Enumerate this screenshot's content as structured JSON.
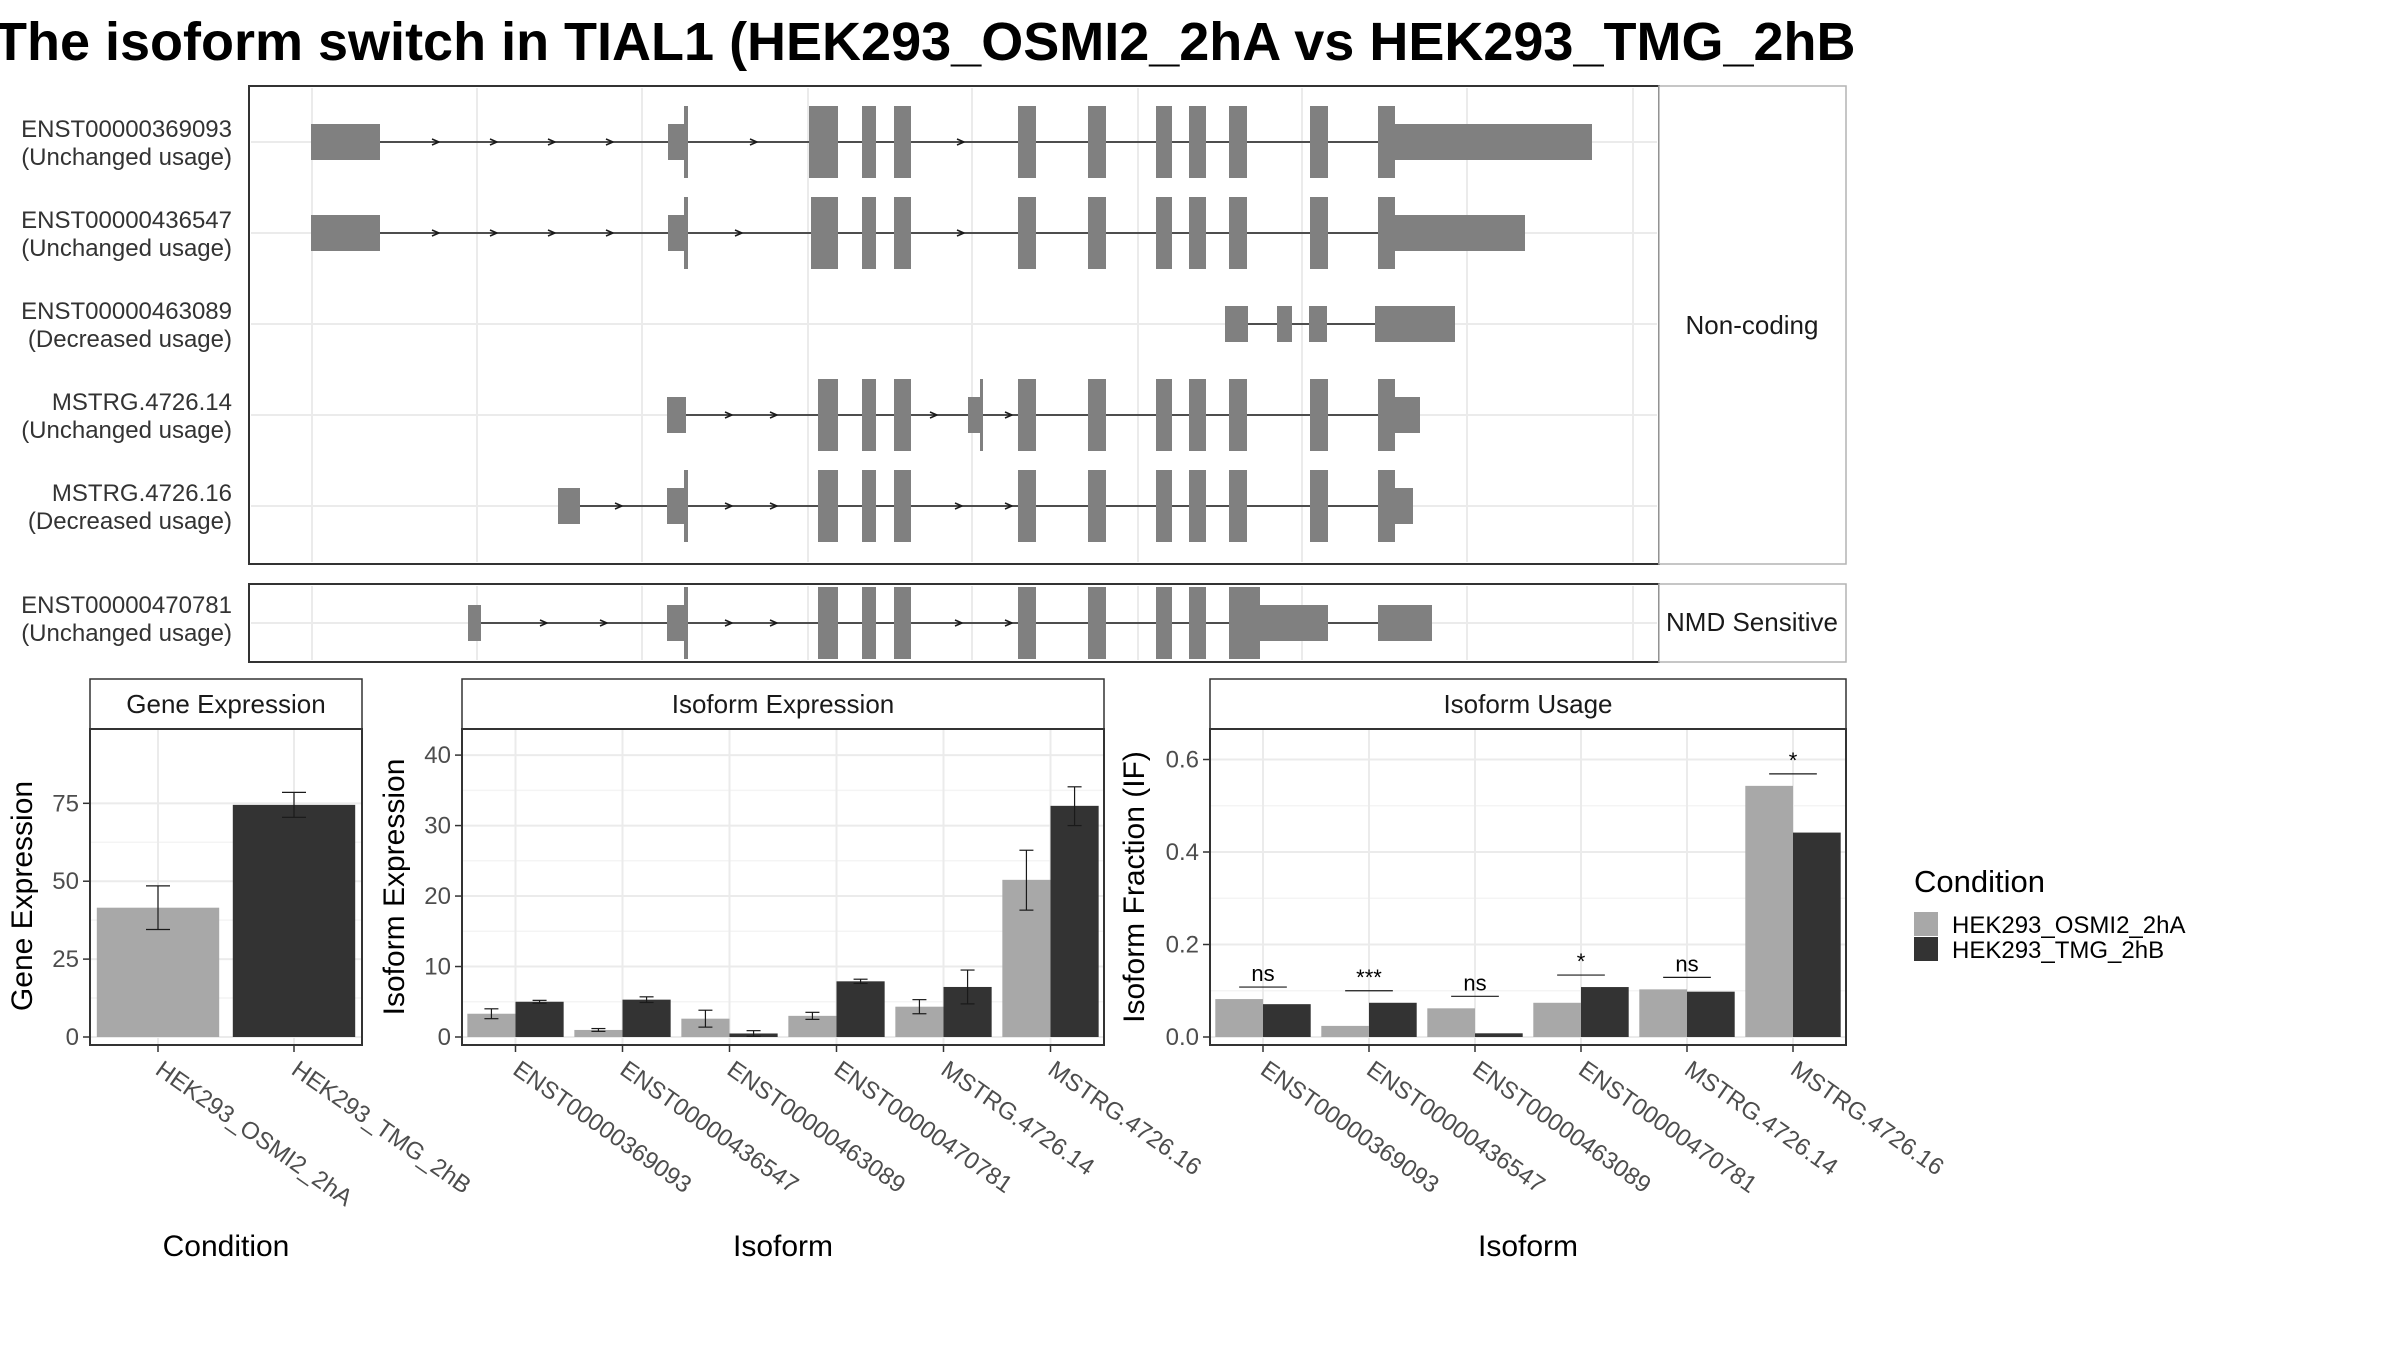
{
  "title": "The isoform switch in TIAL1 (HEK293_OSMI2_2hA vs HEK293_TMG_2hB",
  "colors": {
    "cond1": "#a8a8a8",
    "cond2": "#333333",
    "exon": "#808080",
    "panel_border": "#333333",
    "strip_fill": "#ffffff",
    "grid": "#ebebeb"
  },
  "chart_data": [
    {
      "type": "gene_structure",
      "strips": [
        "Non-coding",
        "NMD Sensitive"
      ],
      "transcripts": [
        {
          "id": "ENST00000369093",
          "usage": "(Unchanged usage)",
          "group": "Non-coding"
        },
        {
          "id": "ENST00000436547",
          "usage": "(Unchanged usage)",
          "group": "Non-coding"
        },
        {
          "id": "ENST00000463089",
          "usage": "(Decreased usage)",
          "group": "Non-coding"
        },
        {
          "id": "MSTRG.4726.14",
          "usage": "(Unchanged usage)",
          "group": "Non-coding"
        },
        {
          "id": "MSTRG.4726.16",
          "usage": "(Decreased usage)",
          "group": "Non-coding"
        },
        {
          "id": "ENST00000470781",
          "usage": "(Unchanged usage)",
          "group": "NMD Sensitive"
        }
      ]
    },
    {
      "type": "bar",
      "title": "Gene Expression",
      "xlabel": "Condition",
      "ylabel": "Gene Expression",
      "ylim": [
        0,
        95
      ],
      "yticks": [
        0,
        25,
        50,
        75
      ],
      "categories": [
        "HEK293_OSMI2_2hA",
        "HEK293_TMG_2hB"
      ],
      "values": [
        41.5,
        74.5
      ],
      "errors": [
        [
          34.5,
          48.5
        ],
        [
          70.5,
          78.5
        ]
      ]
    },
    {
      "type": "bar",
      "title": "Isoform Expression",
      "xlabel": "Isoform",
      "ylabel": "Isoform Expression",
      "ylim": [
        0,
        42
      ],
      "yticks": [
        0,
        10,
        20,
        30,
        40
      ],
      "categories": [
        "ENST00000369093",
        "ENST00000436547",
        "ENST00000463089",
        "ENST00000470781",
        "MSTRG.4726.14",
        "MSTRG.4726.16"
      ],
      "series": [
        {
          "name": "HEK293_OSMI2_2hA",
          "values": [
            3.3,
            1.0,
            2.6,
            3.0,
            4.3,
            22.3
          ],
          "errors": [
            [
              2.6,
              4.0
            ],
            [
              0.8,
              1.2
            ],
            [
              1.4,
              3.8
            ],
            [
              2.5,
              3.5
            ],
            [
              3.3,
              5.3
            ],
            [
              18.0,
              26.5
            ]
          ]
        },
        {
          "name": "HEK293_TMG_2hB",
          "values": [
            5.0,
            5.3,
            0.5,
            7.9,
            7.1,
            32.8
          ],
          "errors": [
            [
              4.8,
              5.2
            ],
            [
              4.9,
              5.7
            ],
            [
              0.1,
              0.9
            ],
            [
              7.6,
              8.2
            ],
            [
              4.7,
              9.5
            ],
            [
              30.0,
              35.5
            ]
          ]
        }
      ]
    },
    {
      "type": "bar",
      "title": "Isoform Usage",
      "xlabel": "Isoform",
      "ylabel": "Isoform Fraction (IF)",
      "ylim": [
        0,
        0.64
      ],
      "yticks": [
        0.0,
        0.2,
        0.4,
        0.6
      ],
      "ytick_labels": [
        "0.0",
        "0.2",
        "0.4",
        "0.6"
      ],
      "categories": [
        "ENST00000369093",
        "ENST00000436547",
        "ENST00000463089",
        "ENST00000470781",
        "MSTRG.4726.14",
        "MSTRG.4726.16"
      ],
      "series": [
        {
          "name": "HEK293_OSMI2_2hA",
          "values": [
            0.082,
            0.024,
            0.062,
            0.074,
            0.103,
            0.543
          ]
        },
        {
          "name": "HEK293_TMG_2hB",
          "values": [
            0.071,
            0.074,
            0.008,
            0.108,
            0.098,
            0.442
          ]
        }
      ],
      "significance": [
        "ns",
        "***",
        "ns",
        "*",
        "ns",
        "*"
      ]
    }
  ],
  "legend": {
    "title": "Condition",
    "items": [
      "HEK293_OSMI2_2hA",
      "HEK293_TMG_2hB"
    ]
  }
}
